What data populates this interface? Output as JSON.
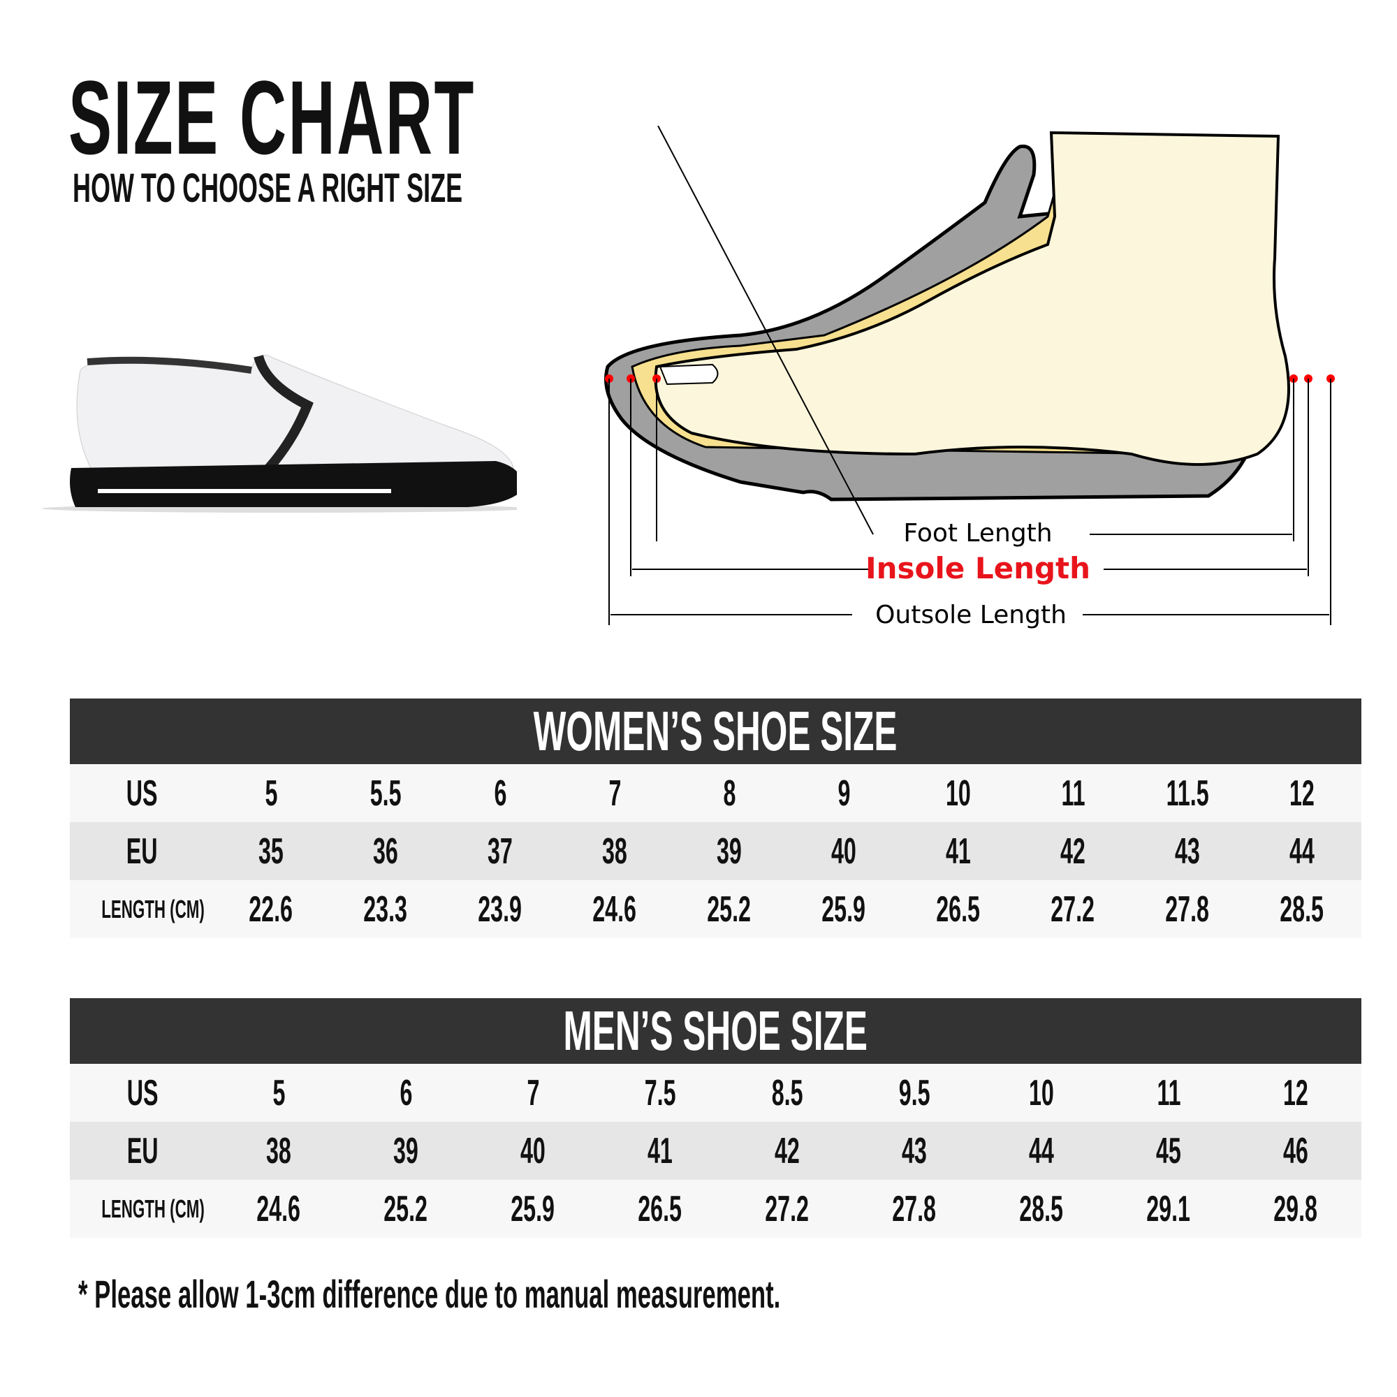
{
  "header": {
    "title": "SIZE CHART",
    "subtitle": "HOW TO CHOOSE A RIGHT SIZE"
  },
  "diagram": {
    "foot_length": "Foot Length",
    "insole_length": "Insole Length",
    "outsole_length": "Outsole Length",
    "highlight_color": "#e8141b",
    "marker_color": "#ff0000"
  },
  "women": {
    "title": "WOMEN’S SHOE SIZE",
    "rows": [
      {
        "label": "US",
        "values": [
          "5",
          "5.5",
          "6",
          "7",
          "8",
          "9",
          "10",
          "11",
          "11.5",
          "12"
        ]
      },
      {
        "label": "EU",
        "values": [
          "35",
          "36",
          "37",
          "38",
          "39",
          "40",
          "41",
          "42",
          "43",
          "44"
        ]
      },
      {
        "label": "LENGTH (CM)",
        "values": [
          "22.6",
          "23.3",
          "23.9",
          "24.6",
          "25.2",
          "25.9",
          "26.5",
          "27.2",
          "27.8",
          "28.5"
        ]
      }
    ]
  },
  "men": {
    "title": "MEN’S SHOE SIZE",
    "rows": [
      {
        "label": "US",
        "values": [
          "5",
          "6",
          "7",
          "7.5",
          "8.5",
          "9.5",
          "10",
          "11",
          "12"
        ]
      },
      {
        "label": "EU",
        "values": [
          "38",
          "39",
          "40",
          "41",
          "42",
          "43",
          "44",
          "45",
          "46"
        ]
      },
      {
        "label": "LENGTH (CM)",
        "values": [
          "24.6",
          "25.2",
          "25.9",
          "26.5",
          "27.2",
          "27.8",
          "28.5",
          "29.1",
          "29.8"
        ]
      }
    ]
  },
  "footnote": "* Please allow 1-3cm difference due to manual measurement."
}
